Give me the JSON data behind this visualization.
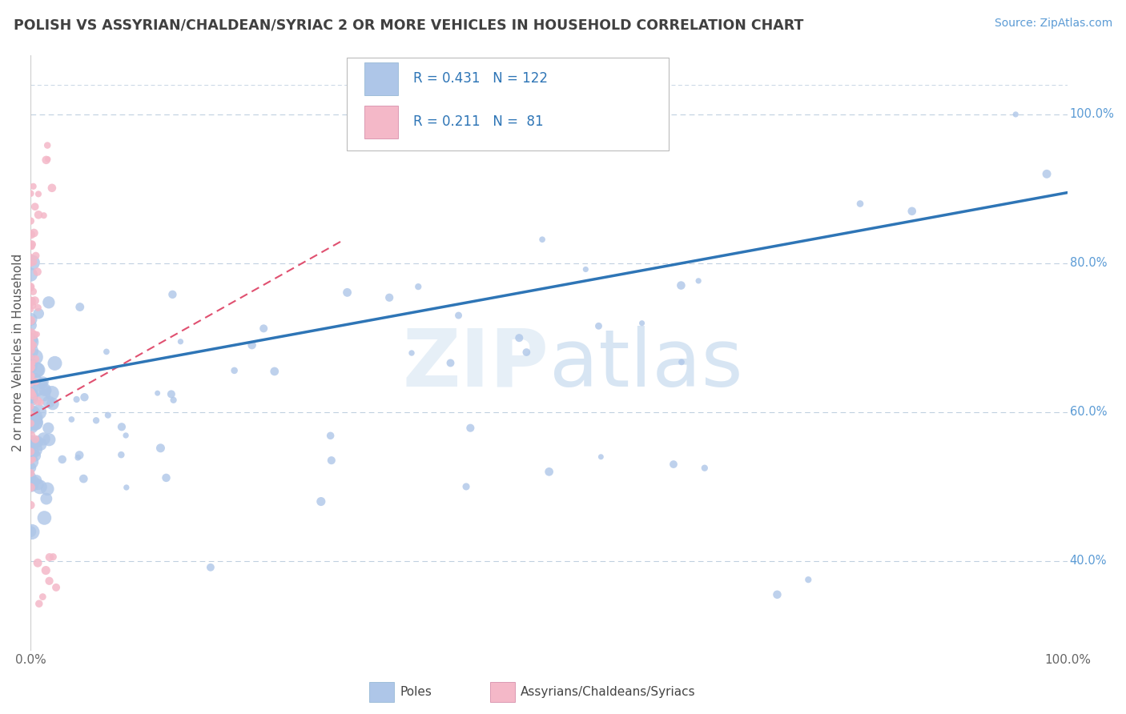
{
  "title": "POLISH VS ASSYRIAN/CHALDEAN/SYRIAC 2 OR MORE VEHICLES IN HOUSEHOLD CORRELATION CHART",
  "source_text": "Source: ZipAtlas.com",
  "ylabel": "2 or more Vehicles in Household",
  "xlim": [
    0.0,
    1.0
  ],
  "ylim": [
    0.28,
    1.08
  ],
  "r_poles": 0.431,
  "n_poles": 122,
  "r_assyrian": 0.211,
  "n_assyrian": 81,
  "poles_color": "#aec6e8",
  "poles_color_line": "#2e75b6",
  "assyrian_color": "#f4b8c8",
  "assyrian_color_line": "#e05070",
  "watermark": "ZIPatlas",
  "background_color": "#ffffff",
  "grid_color": "#c0d0e0",
  "ytick_positions": [
    0.4,
    0.6,
    0.8,
    1.0
  ],
  "ytick_labels": [
    "40.0%",
    "60.0%",
    "80.0%",
    "100.0%"
  ],
  "legend_label1": "Poles",
  "legend_label2": "Assyrians/Chaldeans/Syriacs"
}
